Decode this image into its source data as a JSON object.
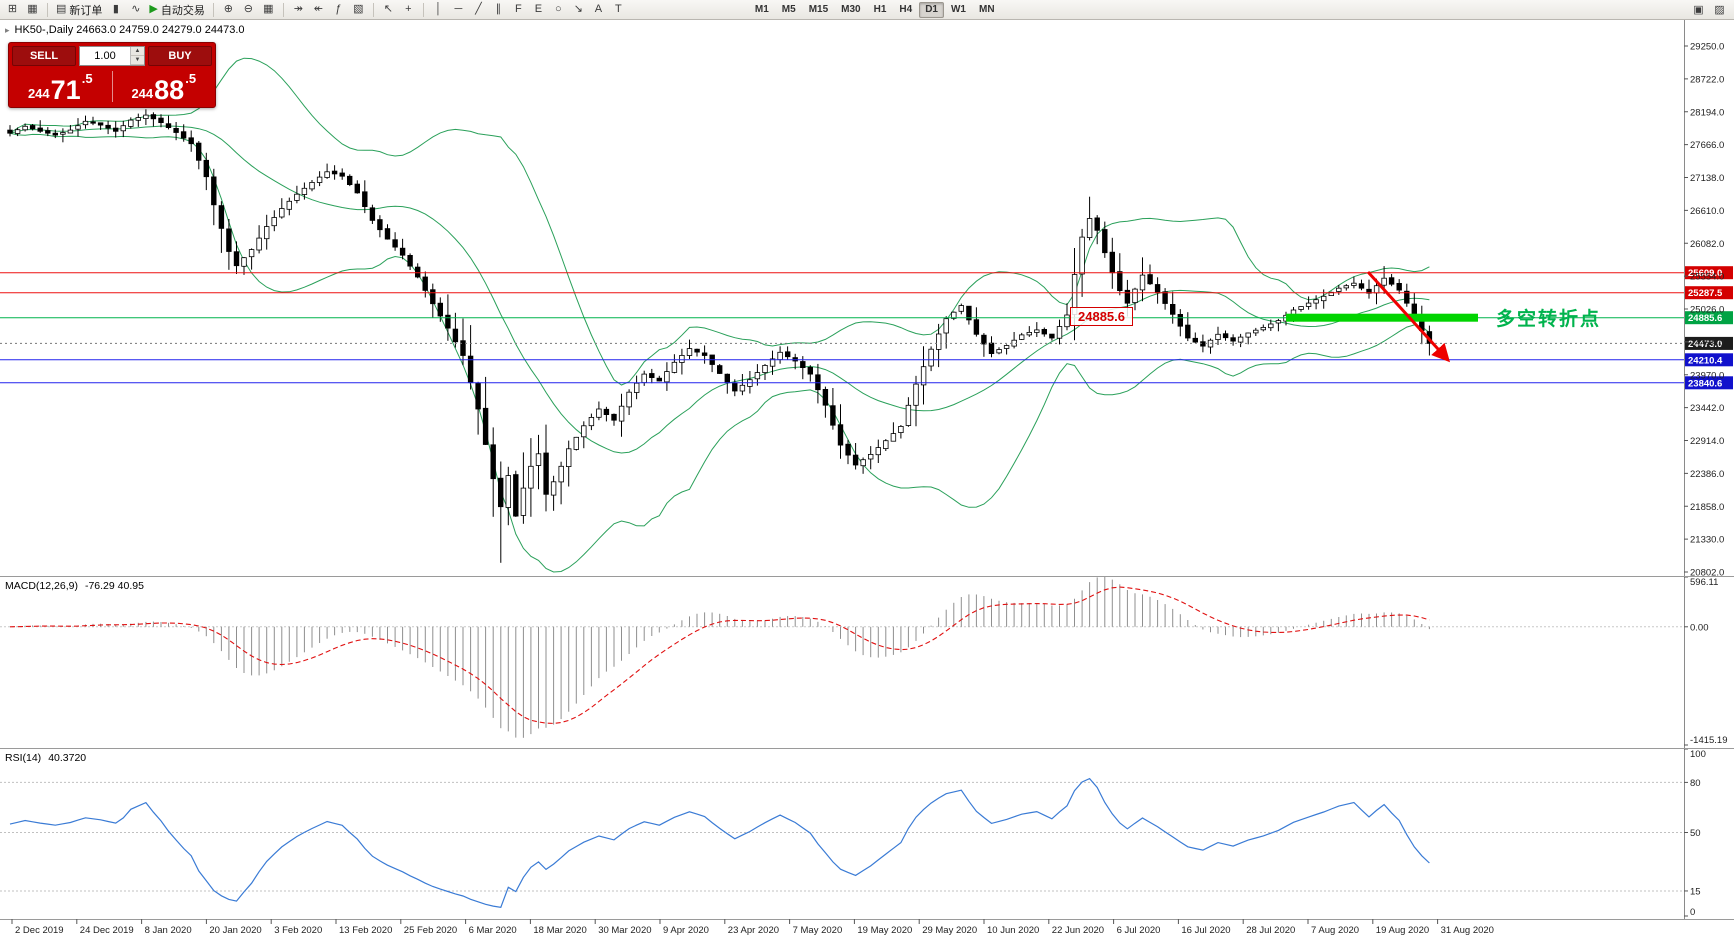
{
  "toolbar": {
    "groups": [
      {
        "items": [
          {
            "name": "new-chart-button",
            "glyph": "⊞"
          },
          {
            "name": "profiles-button",
            "glyph": "▦"
          }
        ]
      },
      {
        "items": [
          {
            "name": "new-order-button",
            "glyph": "▤",
            "label": "新订单"
          },
          {
            "name": "chart-candles-button",
            "glyph": "▮"
          },
          {
            "name": "chart-line-button",
            "glyph": "∿"
          },
          {
            "name": "autotrading-button",
            "glyph": "▶",
            "label": "自动交易",
            "glyph_color": "#1d9a1d"
          }
        ]
      },
      {
        "items": [
          {
            "name": "zoom-in-button",
            "glyph": "⊕"
          },
          {
            "name": "zoom-out-button",
            "glyph": "⊖"
          },
          {
            "name": "tile-windows-button",
            "glyph": "▦"
          }
        ]
      },
      {
        "items": [
          {
            "name": "auto-scroll-button",
            "glyph": "↠"
          },
          {
            "name": "chart-shift-button",
            "glyph": "↞"
          },
          {
            "name": "indicators-button",
            "glyph": "ƒ"
          },
          {
            "name": "templates-button",
            "glyph": "▧"
          }
        ]
      },
      {
        "items": [
          {
            "name": "cursor-button",
            "glyph": "↖"
          },
          {
            "name": "crosshair-button",
            "glyph": "+"
          }
        ]
      },
      {
        "items": [
          {
            "name": "vertical-line-button",
            "glyph": "│"
          },
          {
            "name": "horizontal-line-button",
            "glyph": "─"
          },
          {
            "name": "trendline-button",
            "glyph": "╱"
          },
          {
            "name": "channel-button",
            "glyph": "∥"
          },
          {
            "name": "fibonacci-button",
            "glyph": "F"
          },
          {
            "name": "elliott-button",
            "glyph": "E"
          },
          {
            "name": "shapes-button",
            "glyph": "○"
          },
          {
            "name": "arrows-button",
            "glyph": "↘"
          },
          {
            "name": "text-button",
            "glyph": "A"
          },
          {
            "name": "text-label-button",
            "glyph": "T"
          }
        ]
      }
    ],
    "timeframes": [
      "M1",
      "M5",
      "M15",
      "M30",
      "H1",
      "H4",
      "D1",
      "W1",
      "MN"
    ],
    "active_timeframe": "D1",
    "right_icons": [
      {
        "name": "window-layout-icon",
        "glyph": "▣"
      },
      {
        "name": "chart-properties-icon",
        "glyph": "▨"
      }
    ]
  },
  "chart_header": {
    "symbol_icon": "▸",
    "info_line": "HK50-,Daily  24663.0 24759.0 24279.0 24473.0"
  },
  "trade_panel": {
    "sell_label": "SELL",
    "buy_label": "BUY",
    "volume": "1.00",
    "sell_price": "24471.5",
    "buy_price": "24488.5",
    "up_glyph": "▲",
    "down_glyph": "▼"
  },
  "main_chart": {
    "y_axis": {
      "max": 29250.0,
      "min": 20802.0,
      "step": 528.0,
      "decimals": 1
    },
    "hlines": [
      {
        "price": 25609.0,
        "label": "25609.0",
        "color": "#ee1111",
        "badge_color": "#d40000",
        "style": "solid",
        "name": "resistance-line-1"
      },
      {
        "price": 25287.5,
        "label": "25287.5",
        "color": "#ee1111",
        "badge_color": "#d40000",
        "style": "solid",
        "name": "resistance-line-2"
      },
      {
        "price": 24885.6,
        "label": "24885.6",
        "color": "#00b34d",
        "badge_color": "#00a344",
        "style": "solid",
        "name": "pivot-line"
      },
      {
        "price": 24473.0,
        "label": "24473.0",
        "color": "#777777",
        "badge_color": "#1c1c1c",
        "style": "dotted",
        "name": "current-price-line"
      },
      {
        "price": 24210.4,
        "label": "24210.4",
        "color": "#2222ee",
        "badge_color": "#1111cc",
        "style": "solid",
        "name": "support-line-1"
      },
      {
        "price": 23840.6,
        "label": "23840.6",
        "color": "#2222ee",
        "badge_color": "#1111cc",
        "style": "solid",
        "name": "support-line-2"
      }
    ],
    "annotations": {
      "price_box": {
        "label": "24885.6",
        "color": "#d40000"
      },
      "highlight_band": {
        "price": 24885.6,
        "color": "#00d400"
      },
      "turning_point": {
        "label": "多空转折点",
        "color": "#00b34d"
      },
      "trend_arrow": {
        "color": "#ee0000",
        "direction": "down-right"
      }
    }
  },
  "macd_panel": {
    "title": "MACD(12,26,9)",
    "current_values": "-76.29 40.95",
    "axis_labels": [
      "596.11",
      "0.00",
      "-1415.19"
    ],
    "axis_max": 596.11,
    "axis_min": -1415.19,
    "histogram_color": "#8f8f8f",
    "signal_color": "#e01010"
  },
  "rsi_panel": {
    "title": "RSI(14)",
    "current_value": "40.3720",
    "axis_labels": [
      "100",
      "80",
      "50",
      "15",
      "0"
    ],
    "levels": [
      80,
      50,
      15
    ],
    "line_color": "#3a7bd5"
  },
  "chart_data": {
    "type": "candlestick",
    "symbol": "HK50-",
    "period": "Daily",
    "ohlc_current": {
      "open": 24663.0,
      "high": 24759.0,
      "low": 24279.0,
      "close": 24473.0
    },
    "bid": 24471.5,
    "ask": 24488.5,
    "y_axis_range": [
      20802.0,
      29250.0
    ],
    "candles_count": 189,
    "close_path_anchors": [
      [
        0,
        27850
      ],
      [
        2,
        27960
      ],
      [
        4,
        27880
      ],
      [
        6,
        27820
      ],
      [
        8,
        27900
      ],
      [
        10,
        28040
      ],
      [
        12,
        27980
      ],
      [
        14,
        27880
      ],
      [
        16,
        28060
      ],
      [
        18,
        28140
      ],
      [
        20,
        28020
      ],
      [
        22,
        27860
      ],
      [
        24,
        27680
      ],
      [
        26,
        27150
      ],
      [
        27,
        26700
      ],
      [
        28,
        26320
      ],
      [
        29,
        25950
      ],
      [
        30,
        25720
      ],
      [
        32,
        25980
      ],
      [
        34,
        26350
      ],
      [
        36,
        26640
      ],
      [
        38,
        26870
      ],
      [
        40,
        27060
      ],
      [
        42,
        27230
      ],
      [
        44,
        27160
      ],
      [
        46,
        26890
      ],
      [
        48,
        26450
      ],
      [
        50,
        26150
      ],
      [
        52,
        25890
      ],
      [
        54,
        25540
      ],
      [
        56,
        25110
      ],
      [
        58,
        24720
      ],
      [
        60,
        24280
      ],
      [
        61,
        23850
      ],
      [
        62,
        23420
      ],
      [
        63,
        22850
      ],
      [
        64,
        22300
      ],
      [
        65,
        21850
      ],
      [
        66,
        22350
      ],
      [
        67,
        21700
      ],
      [
        68,
        22150
      ],
      [
        69,
        22500
      ],
      [
        70,
        22700
      ],
      [
        71,
        22050
      ],
      [
        72,
        22250
      ],
      [
        73,
        22500
      ],
      [
        74,
        22780
      ],
      [
        76,
        23150
      ],
      [
        78,
        23420
      ],
      [
        80,
        23240
      ],
      [
        82,
        23690
      ],
      [
        84,
        23980
      ],
      [
        86,
        23870
      ],
      [
        88,
        24170
      ],
      [
        90,
        24390
      ],
      [
        92,
        24280
      ],
      [
        94,
        23990
      ],
      [
        96,
        23710
      ],
      [
        98,
        23890
      ],
      [
        100,
        24120
      ],
      [
        102,
        24330
      ],
      [
        104,
        24190
      ],
      [
        106,
        23980
      ],
      [
        108,
        23480
      ],
      [
        110,
        22840
      ],
      [
        112,
        22520
      ],
      [
        114,
        22690
      ],
      [
        116,
        22910
      ],
      [
        118,
        23140
      ],
      [
        120,
        23820
      ],
      [
        122,
        24380
      ],
      [
        124,
        24870
      ],
      [
        126,
        25080
      ],
      [
        128,
        24620
      ],
      [
        130,
        24310
      ],
      [
        132,
        24440
      ],
      [
        134,
        24610
      ],
      [
        136,
        24690
      ],
      [
        138,
        24560
      ],
      [
        140,
        24930
      ],
      [
        141,
        25580
      ],
      [
        142,
        26180
      ],
      [
        143,
        26480
      ],
      [
        144,
        26290
      ],
      [
        145,
        25930
      ],
      [
        146,
        25610
      ],
      [
        147,
        25320
      ],
      [
        148,
        25120
      ],
      [
        150,
        25570
      ],
      [
        152,
        25290
      ],
      [
        154,
        24940
      ],
      [
        156,
        24560
      ],
      [
        158,
        24430
      ],
      [
        160,
        24620
      ],
      [
        162,
        24510
      ],
      [
        164,
        24640
      ],
      [
        166,
        24730
      ],
      [
        168,
        24840
      ],
      [
        170,
        25010
      ],
      [
        172,
        25120
      ],
      [
        174,
        25230
      ],
      [
        176,
        25360
      ],
      [
        178,
        25440
      ],
      [
        180,
        25280
      ],
      [
        182,
        25520
      ],
      [
        184,
        25330
      ],
      [
        185,
        25120
      ],
      [
        186,
        24890
      ],
      [
        187,
        24680
      ],
      [
        188,
        24473
      ]
    ],
    "forced_extremes": {
      "crash_low_index": 65,
      "crash_low": 20950,
      "july_high_index": 143,
      "july_high": 26830,
      "aug_high_index": 182,
      "aug_high": 25690
    },
    "overlays": [
      {
        "name": "Bollinger Bands",
        "period": 20,
        "deviation": 2,
        "color": "#2aa05a"
      }
    ],
    "horizontal_levels": [
      25609.0,
      25287.5,
      24885.6,
      24210.4,
      23840.6
    ],
    "x_tick_labels": [
      "2 Dec 2019",
      "24 Dec 2019",
      "8 Jan 2020",
      "20 Jan 2020",
      "3 Feb 2020",
      "13 Feb 2020",
      "25 Feb 2020",
      "6 Mar 2020",
      "18 Mar 2020",
      "30 Mar 2020",
      "9 Apr 2020",
      "23 Apr 2020",
      "7 May 2020",
      "19 May 2020",
      "29 May 2020",
      "10 Jun 2020",
      "22 Jun 2020",
      "6 Jul 2020",
      "16 Jul 2020",
      "28 Jul 2020",
      "7 Aug 2020",
      "19 Aug 2020",
      "31 Aug 2020"
    ],
    "indicators": [
      {
        "name": "MACD",
        "params": [
          12,
          26,
          9
        ],
        "current": [
          -76.29,
          40.95
        ],
        "display_range": [
          -1415.19,
          596.11
        ]
      },
      {
        "name": "RSI",
        "params": [
          14
        ],
        "current": 40.372,
        "display_range": [
          0,
          100
        ],
        "levels": [
          80,
          50,
          15
        ]
      }
    ]
  }
}
